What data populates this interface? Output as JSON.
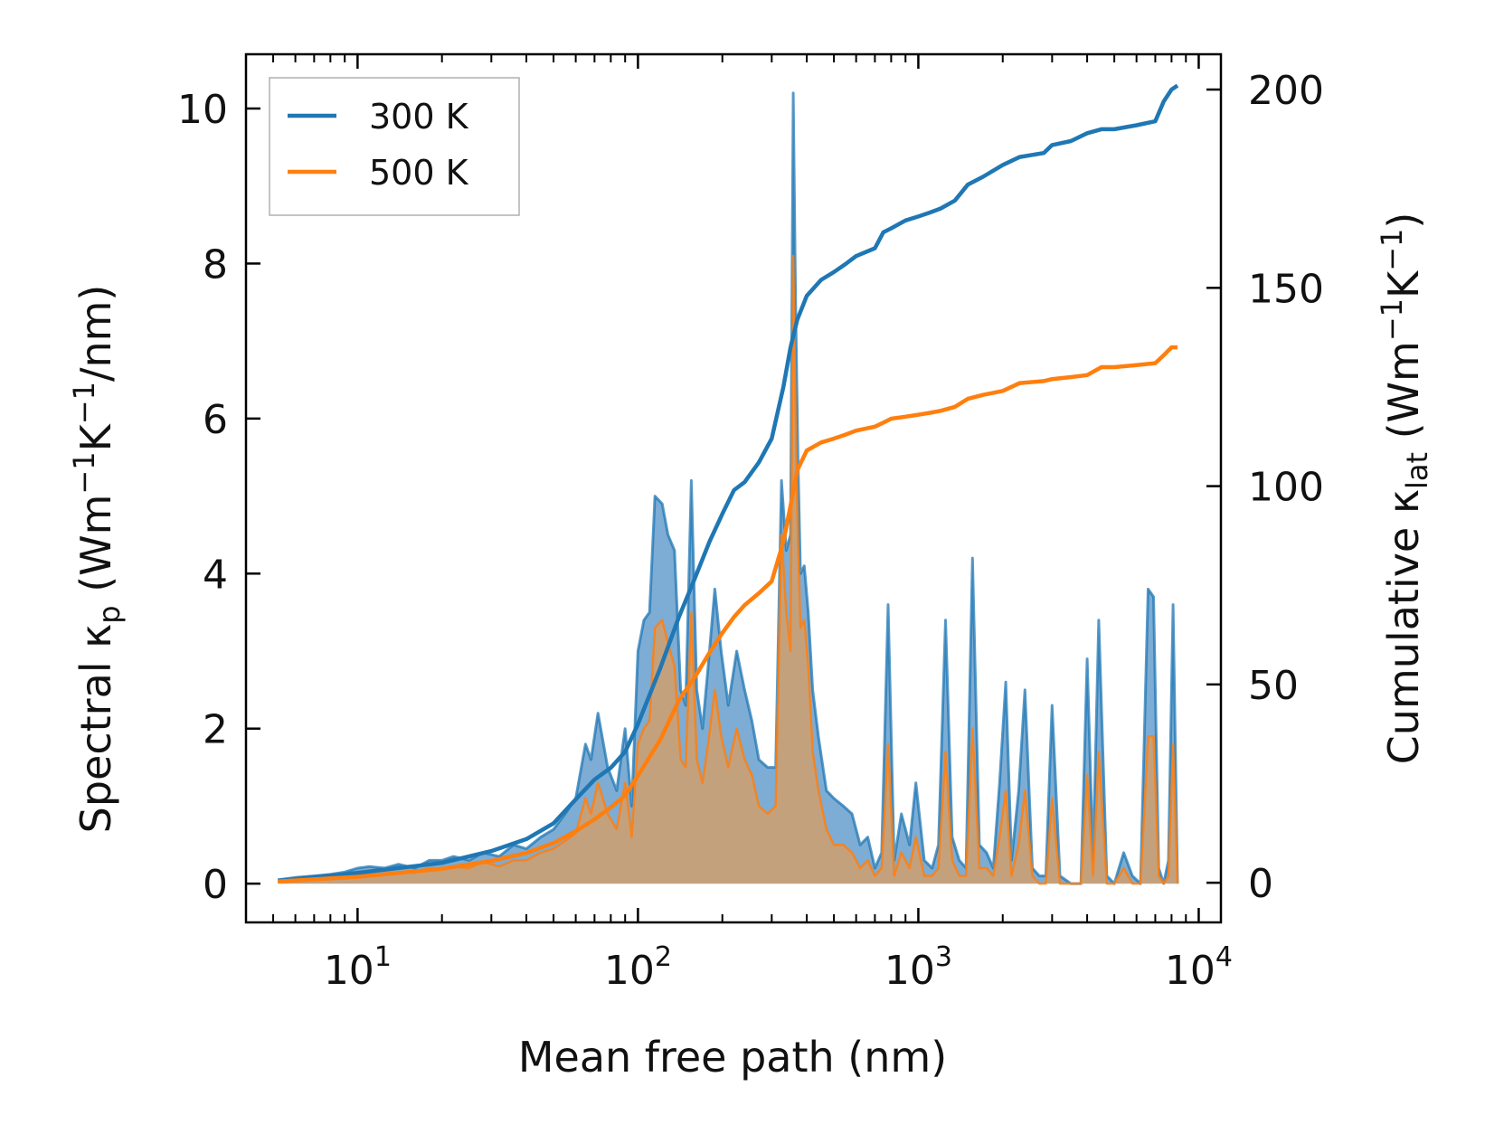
{
  "chart_data": {
    "type": "line",
    "xscale": "log",
    "xlim": [
      4.0,
      12000
    ],
    "ylim_left": [
      -0.5,
      10.7
    ],
    "ylim_right": [
      -10,
      208.9
    ],
    "xlabel": "Mean free path (nm)",
    "ylabel_left": {
      "main": "Spectral κ",
      "sub": "p",
      "rest_open": " (Wm",
      "sup1": "−1",
      "mid": "K",
      "sup2": "−1",
      "rest_close": "/nm)"
    },
    "ylabel_right": {
      "main": "Cumulative κ",
      "sub": "lat",
      "rest_open": " (Wm",
      "sup1": "−1",
      "mid": "K",
      "sup2": "−1",
      "rest_close": ")"
    },
    "x_ticks": [
      {
        "value": 10,
        "base": "10",
        "exp": "1"
      },
      {
        "value": 100,
        "base": "10",
        "exp": "2"
      },
      {
        "value": 1000,
        "base": "10",
        "exp": "3"
      },
      {
        "value": 10000,
        "base": "10",
        "exp": "4"
      }
    ],
    "y_ticks_left": [
      0,
      2,
      4,
      6,
      8,
      10
    ],
    "y_ticks_right": [
      0,
      50,
      100,
      150,
      200
    ],
    "legend": {
      "position": "top-left",
      "entries": [
        "300 K",
        "500 K"
      ]
    },
    "colors": {
      "300K": "#1f77b4",
      "500K": "#ff7f0e",
      "fill300": "#6fa3cf",
      "fill500": "#c8a078"
    },
    "series": [
      {
        "name": "300 K",
        "axis": "left",
        "kind": "spectral",
        "x": [
          5.2,
          6.0,
          7.0,
          8.0,
          9.0,
          10.0,
          11.0,
          12.5,
          14.0,
          16.0,
          18.0,
          20.0,
          22.0,
          25.0,
          28.0,
          32.0,
          36.0,
          40.0,
          45.0,
          50.0,
          55.0,
          60.0,
          65.0,
          68.0,
          72.0,
          78.0,
          84.0,
          90.0,
          95.0,
          100.0,
          105.0,
          110.0,
          115.0,
          122.0,
          128.0,
          135.0,
          142.0,
          148.0,
          155.0,
          162.0,
          170.0,
          178.0,
          188.0,
          198.0,
          210.0,
          225.0,
          240.0,
          255.0,
          270.0,
          290.0,
          310.0,
          325.0,
          338.0,
          350.0,
          358.0,
          365.0,
          372.0,
          380.0,
          392.0,
          405.0,
          420.0,
          440.0,
          470.0,
          500.0,
          540.0,
          580.0,
          620.0,
          660.0,
          700.0,
          740.0,
          780.0,
          820.0,
          870.0,
          930.0,
          980.0,
          1050.0,
          1120.0,
          1180.0,
          1250.0,
          1320.0,
          1400.0,
          1480.0,
          1560.0,
          1650.0,
          1750.0,
          1850.0,
          1950.0,
          2050.0,
          2150.0,
          2280.0,
          2400.0,
          2550.0,
          2700.0,
          2850.0,
          3000.0,
          3200.0,
          3500.0,
          3800.0,
          4000.0,
          4200.0,
          4400.0,
          4700.0,
          5000.0,
          5400.0,
          5800.0,
          6200.0,
          6600.0,
          6900.0,
          7200.0,
          7500.0,
          7800.0,
          8100.0,
          8400.0
        ],
        "y": [
          0.05,
          0.08,
          0.1,
          0.12,
          0.15,
          0.2,
          0.22,
          0.2,
          0.25,
          0.2,
          0.3,
          0.3,
          0.35,
          0.3,
          0.4,
          0.35,
          0.5,
          0.45,
          0.6,
          0.7,
          0.9,
          1.1,
          1.8,
          1.6,
          2.2,
          1.5,
          1.2,
          2.0,
          1.0,
          3.0,
          3.4,
          3.5,
          5.0,
          4.9,
          4.5,
          4.3,
          2.5,
          2.3,
          5.2,
          2.5,
          2.0,
          2.8,
          3.8,
          3.0,
          2.3,
          3.0,
          2.5,
          2.1,
          1.6,
          1.5,
          1.5,
          5.2,
          4.3,
          4.5,
          10.2,
          7.5,
          5.5,
          4.0,
          4.1,
          3.5,
          2.5,
          1.9,
          1.2,
          1.1,
          1.0,
          0.9,
          0.5,
          0.6,
          0.2,
          0.4,
          3.6,
          0.3,
          0.9,
          0.5,
          1.3,
          0.3,
          0.2,
          0.5,
          3.4,
          0.6,
          0.3,
          0.2,
          4.2,
          0.5,
          0.4,
          0.2,
          1.3,
          2.6,
          0.3,
          1.2,
          2.5,
          0.2,
          0.1,
          0.1,
          2.3,
          0.1,
          0.0,
          0.0,
          2.9,
          0.3,
          3.4,
          0.1,
          0.0,
          0.4,
          0.1,
          0.0,
          3.8,
          3.7,
          0.2,
          0.0,
          0.3,
          3.6,
          0.0
        ]
      },
      {
        "name": "500 K",
        "axis": "left",
        "kind": "spectral",
        "x": [
          5.2,
          6.0,
          7.0,
          8.0,
          9.0,
          10.0,
          11.0,
          12.5,
          14.0,
          16.0,
          18.0,
          20.0,
          22.0,
          25.0,
          28.0,
          32.0,
          36.0,
          40.0,
          45.0,
          50.0,
          55.0,
          60.0,
          65.0,
          68.0,
          72.0,
          78.0,
          84.0,
          90.0,
          95.0,
          100.0,
          105.0,
          110.0,
          115.0,
          122.0,
          128.0,
          135.0,
          142.0,
          148.0,
          155.0,
          162.0,
          170.0,
          178.0,
          188.0,
          198.0,
          210.0,
          225.0,
          240.0,
          255.0,
          270.0,
          290.0,
          310.0,
          325.0,
          338.0,
          350.0,
          358.0,
          365.0,
          372.0,
          380.0,
          392.0,
          405.0,
          420.0,
          440.0,
          470.0,
          500.0,
          540.0,
          580.0,
          620.0,
          660.0,
          700.0,
          740.0,
          780.0,
          820.0,
          870.0,
          930.0,
          980.0,
          1050.0,
          1120.0,
          1180.0,
          1250.0,
          1320.0,
          1400.0,
          1480.0,
          1560.0,
          1650.0,
          1750.0,
          1850.0,
          1950.0,
          2050.0,
          2150.0,
          2280.0,
          2400.0,
          2550.0,
          2700.0,
          2850.0,
          3000.0,
          3200.0,
          3500.0,
          3800.0,
          4000.0,
          4200.0,
          4400.0,
          4700.0,
          5000.0,
          5400.0,
          5800.0,
          6200.0,
          6600.0,
          6900.0,
          7200.0,
          7500.0,
          7800.0,
          8100.0,
          8400.0
        ],
        "y": [
          0.02,
          0.04,
          0.05,
          0.06,
          0.08,
          0.1,
          0.12,
          0.12,
          0.15,
          0.14,
          0.2,
          0.2,
          0.22,
          0.2,
          0.28,
          0.22,
          0.3,
          0.3,
          0.4,
          0.45,
          0.55,
          0.65,
          1.1,
          0.9,
          1.3,
          0.9,
          0.7,
          1.3,
          0.6,
          1.8,
          2.0,
          2.1,
          3.3,
          3.4,
          3.1,
          2.8,
          1.6,
          1.5,
          3.5,
          1.6,
          1.3,
          1.8,
          2.5,
          1.9,
          1.5,
          2.0,
          1.6,
          1.4,
          1.0,
          0.9,
          1.0,
          4.5,
          3.5,
          3.0,
          8.1,
          6.0,
          4.4,
          3.3,
          3.4,
          2.8,
          1.7,
          1.2,
          0.7,
          0.5,
          0.5,
          0.4,
          0.2,
          0.3,
          0.1,
          0.2,
          1.8,
          0.1,
          0.4,
          0.2,
          0.6,
          0.1,
          0.1,
          0.2,
          1.7,
          0.3,
          0.1,
          0.1,
          2.0,
          0.2,
          0.2,
          0.1,
          0.6,
          1.2,
          0.1,
          0.5,
          1.2,
          0.1,
          0.0,
          0.0,
          1.1,
          0.0,
          0.0,
          0.0,
          1.4,
          0.1,
          1.7,
          0.0,
          0.0,
          0.2,
          0.0,
          0.0,
          1.9,
          1.9,
          0.1,
          0.0,
          0.1,
          1.8,
          0.0
        ]
      },
      {
        "name": "300 K cumulative",
        "axis": "right",
        "kind": "cumulative",
        "x": [
          5.2,
          10.0,
          20.0,
          30.0,
          40.0,
          50.0,
          60.0,
          70.0,
          80.0,
          90.0,
          100.0,
          120.0,
          140.0,
          160.0,
          180.0,
          200.0,
          220.0,
          240.0,
          270.0,
          300.0,
          330.0,
          350.0,
          370.0,
          400.0,
          450.0,
          500.0,
          550.0,
          600.0,
          700.0,
          750.0,
          800.0,
          900.0,
          1000.0,
          1100.0,
          1200.0,
          1350.0,
          1500.0,
          1700.0,
          2000.0,
          2300.0,
          2800.0,
          3000.0,
          3500.0,
          4000.0,
          4500.0,
          5000.0,
          6000.0,
          7000.0,
          7500.0,
          8000.0,
          8400.0
        ],
        "y": [
          0.5,
          2.5,
          5.0,
          8.0,
          11.0,
          15.0,
          21.0,
          26.0,
          29.0,
          33.0,
          40.0,
          54.0,
          67.0,
          77.0,
          86.0,
          93.0,
          99.0,
          101.0,
          106.0,
          112.0,
          125.0,
          135.0,
          142.0,
          148.0,
          152.0,
          154.0,
          156.0,
          158.0,
          160.0,
          164.0,
          165.0,
          167.0,
          168.0,
          169.0,
          170.0,
          172.0,
          176.0,
          178.0,
          181.0,
          183.0,
          184.0,
          186.0,
          187.0,
          189.0,
          190.0,
          190.0,
          191.0,
          192.0,
          197.0,
          200.0,
          201.0
        ]
      },
      {
        "name": "500 K cumulative",
        "axis": "right",
        "kind": "cumulative",
        "x": [
          5.2,
          10.0,
          20.0,
          30.0,
          40.0,
          50.0,
          60.0,
          70.0,
          80.0,
          90.0,
          100.0,
          120.0,
          140.0,
          160.0,
          180.0,
          200.0,
          220.0,
          240.0,
          270.0,
          300.0,
          330.0,
          350.0,
          370.0,
          400.0,
          450.0,
          500.0,
          550.0,
          600.0,
          700.0,
          750.0,
          800.0,
          900.0,
          1000.0,
          1100.0,
          1200.0,
          1350.0,
          1500.0,
          1700.0,
          2000.0,
          2300.0,
          2800.0,
          3000.0,
          3500.0,
          4000.0,
          4500.0,
          5000.0,
          6000.0,
          7000.0,
          7500.0,
          8000.0,
          8400.0
        ],
        "y": [
          0.3,
          1.5,
          3.5,
          5.5,
          7.5,
          10.0,
          13.0,
          16.0,
          19.0,
          22.0,
          27.0,
          36.0,
          46.0,
          52.0,
          58.0,
          63.0,
          67.0,
          70.0,
          73.0,
          76.0,
          86.0,
          95.0,
          104.0,
          109.0,
          111.0,
          112.0,
          113.0,
          114.0,
          115.0,
          116.0,
          117.0,
          117.5,
          118.0,
          118.5,
          119.0,
          120.0,
          122.0,
          123.0,
          124.0,
          126.0,
          126.5,
          127.0,
          127.5,
          128.0,
          130.0,
          130.0,
          130.5,
          131.0,
          133.0,
          135.0,
          135.0
        ]
      }
    ]
  }
}
